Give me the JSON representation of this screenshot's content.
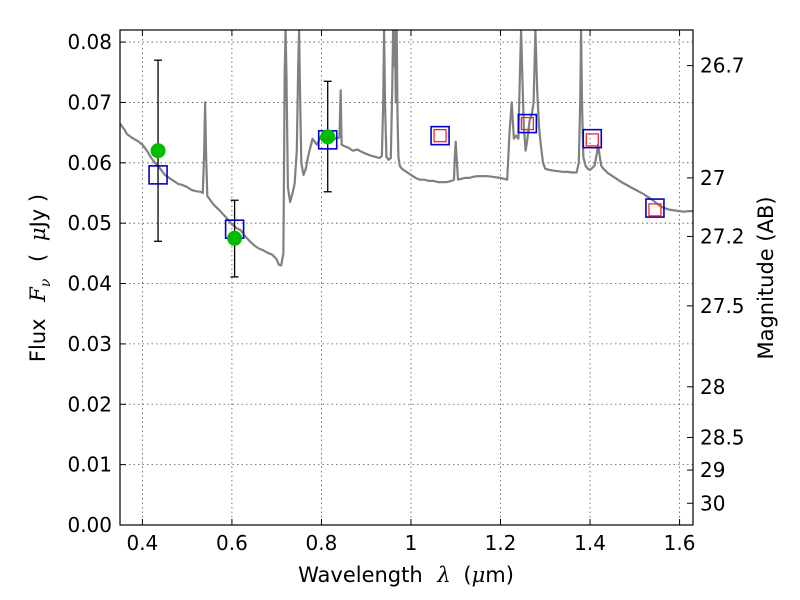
{
  "chart_data": {
    "type": "scatter",
    "xlabel": {
      "prefix": "Wavelength",
      "symbol": "λ",
      "unit_open": "(",
      "unit_mu": "μ",
      "unit_rest": "m)"
    },
    "ylabel": {
      "prefix": "Flux",
      "symbol": "F",
      "subscript": "ν",
      "unit_open": "(",
      "unit_mu": "μ",
      "unit_rest": "Jy )"
    },
    "y2label": "Magnitude (AB)",
    "xlim": [
      0.35,
      1.63
    ],
    "ylim": [
      0.0,
      0.082
    ],
    "grid": true,
    "xticks": [
      {
        "value": 0.4,
        "label": "0.4"
      },
      {
        "value": 0.6,
        "label": "0.6"
      },
      {
        "value": 0.8,
        "label": "0.8"
      },
      {
        "value": 1.0,
        "label": "1"
      },
      {
        "value": 1.2,
        "label": "1.2"
      },
      {
        "value": 1.4,
        "label": "1.4"
      },
      {
        "value": 1.6,
        "label": "1.6"
      }
    ],
    "yticks": [
      {
        "value": 0.0,
        "label": "0.00"
      },
      {
        "value": 0.01,
        "label": "0.01"
      },
      {
        "value": 0.02,
        "label": "0.02"
      },
      {
        "value": 0.03,
        "label": "0.03"
      },
      {
        "value": 0.04,
        "label": "0.04"
      },
      {
        "value": 0.05,
        "label": "0.05"
      },
      {
        "value": 0.06,
        "label": "0.06"
      },
      {
        "value": 0.07,
        "label": "0.07"
      },
      {
        "value": 0.08,
        "label": "0.08"
      }
    ],
    "y2ticks": [
      {
        "flux": 0.0761,
        "label": "26.7"
      },
      {
        "flux": 0.0575,
        "label": "27"
      },
      {
        "flux": 0.0478,
        "label": "27.2"
      },
      {
        "flux": 0.0363,
        "label": "27.5"
      },
      {
        "flux": 0.0229,
        "label": "28"
      },
      {
        "flux": 0.0145,
        "label": "28.5"
      },
      {
        "flux": 0.0091,
        "label": "29"
      },
      {
        "flux": 0.0036,
        "label": "30"
      }
    ],
    "series": [
      {
        "kind": "spectrum",
        "color": "#808080",
        "points": [
          [
            0.35,
            0.0665
          ],
          [
            0.355,
            0.066
          ],
          [
            0.36,
            0.0655
          ],
          [
            0.365,
            0.0648
          ],
          [
            0.37,
            0.0645
          ],
          [
            0.38,
            0.064
          ],
          [
            0.39,
            0.0636
          ],
          [
            0.4,
            0.063
          ],
          [
            0.41,
            0.062
          ],
          [
            0.42,
            0.0608
          ],
          [
            0.43,
            0.0598
          ],
          [
            0.44,
            0.059
          ],
          [
            0.45,
            0.058
          ],
          [
            0.46,
            0.0575
          ],
          [
            0.47,
            0.057
          ],
          [
            0.48,
            0.0565
          ],
          [
            0.49,
            0.0563
          ],
          [
            0.5,
            0.056
          ],
          [
            0.51,
            0.0555
          ],
          [
            0.52,
            0.0553
          ],
          [
            0.53,
            0.0552
          ],
          [
            0.535,
            0.055
          ],
          [
            0.538,
            0.062
          ],
          [
            0.54,
            0.07
          ],
          [
            0.542,
            0.062
          ],
          [
            0.545,
            0.0545
          ],
          [
            0.55,
            0.054
          ],
          [
            0.56,
            0.053
          ],
          [
            0.57,
            0.0523
          ],
          [
            0.58,
            0.0515
          ],
          [
            0.59,
            0.0507
          ],
          [
            0.6,
            0.0498
          ],
          [
            0.61,
            0.0492
          ],
          [
            0.62,
            0.0488
          ],
          [
            0.63,
            0.0478
          ],
          [
            0.64,
            0.047
          ],
          [
            0.65,
            0.0463
          ],
          [
            0.66,
            0.0458
          ],
          [
            0.67,
            0.0455
          ],
          [
            0.68,
            0.0451
          ],
          [
            0.69,
            0.0448
          ],
          [
            0.7,
            0.044
          ],
          [
            0.705,
            0.0431
          ],
          [
            0.71,
            0.043
          ],
          [
            0.715,
            0.045
          ],
          [
            0.718,
            0.075
          ],
          [
            0.72,
            0.082
          ],
          [
            0.722,
            0.074
          ],
          [
            0.725,
            0.056
          ],
          [
            0.73,
            0.0535
          ],
          [
            0.735,
            0.0548
          ],
          [
            0.74,
            0.0565
          ],
          [
            0.745,
            0.062
          ],
          [
            0.748,
            0.076
          ],
          [
            0.75,
            0.082
          ],
          [
            0.752,
            0.072
          ],
          [
            0.755,
            0.06
          ],
          [
            0.76,
            0.058
          ],
          [
            0.765,
            0.059
          ],
          [
            0.77,
            0.061
          ],
          [
            0.775,
            0.0625
          ],
          [
            0.78,
            0.064
          ],
          [
            0.785,
            0.0635
          ],
          [
            0.79,
            0.063
          ],
          [
            0.795,
            0.0638
          ],
          [
            0.8,
            0.0645
          ],
          [
            0.81,
            0.0648
          ],
          [
            0.82,
            0.065
          ],
          [
            0.83,
            0.064
          ],
          [
            0.84,
            0.0642
          ],
          [
            0.843,
            0.072
          ],
          [
            0.845,
            0.063
          ],
          [
            0.85,
            0.0628
          ],
          [
            0.86,
            0.0625
          ],
          [
            0.87,
            0.062
          ],
          [
            0.88,
            0.0622
          ],
          [
            0.89,
            0.0618
          ],
          [
            0.9,
            0.0615
          ],
          [
            0.91,
            0.0612
          ],
          [
            0.92,
            0.061
          ],
          [
            0.93,
            0.0608
          ],
          [
            0.935,
            0.0612
          ],
          [
            0.938,
            0.07
          ],
          [
            0.94,
            0.082
          ],
          [
            0.942,
            0.07
          ],
          [
            0.945,
            0.061
          ],
          [
            0.95,
            0.0605
          ],
          [
            0.955,
            0.0608
          ],
          [
            0.958,
            0.072
          ],
          [
            0.96,
            0.082
          ],
          [
            0.962,
            0.076
          ],
          [
            0.964,
            0.082
          ],
          [
            0.966,
            0.07
          ],
          [
            0.968,
            0.082
          ],
          [
            0.97,
            0.068
          ],
          [
            0.972,
            0.061
          ],
          [
            0.975,
            0.0595
          ],
          [
            0.98,
            0.059
          ],
          [
            0.99,
            0.0585
          ],
          [
            1.0,
            0.058
          ],
          [
            1.01,
            0.0575
          ],
          [
            1.02,
            0.0572
          ],
          [
            1.03,
            0.0572
          ],
          [
            1.04,
            0.057
          ],
          [
            1.05,
            0.057
          ],
          [
            1.06,
            0.0568
          ],
          [
            1.07,
            0.0568
          ],
          [
            1.08,
            0.0568
          ],
          [
            1.09,
            0.057
          ],
          [
            1.096,
            0.0572
          ],
          [
            1.098,
            0.061
          ],
          [
            1.1,
            0.0635
          ],
          [
            1.102,
            0.061
          ],
          [
            1.105,
            0.0572
          ],
          [
            1.11,
            0.0573
          ],
          [
            1.12,
            0.0575
          ],
          [
            1.13,
            0.0575
          ],
          [
            1.14,
            0.0577
          ],
          [
            1.15,
            0.0578
          ],
          [
            1.16,
            0.0578
          ],
          [
            1.17,
            0.0578
          ],
          [
            1.18,
            0.0577
          ],
          [
            1.19,
            0.0576
          ],
          [
            1.2,
            0.0575
          ],
          [
            1.21,
            0.0573
          ],
          [
            1.215,
            0.0572
          ],
          [
            1.22,
            0.065
          ],
          [
            1.225,
            0.07
          ],
          [
            1.23,
            0.064
          ],
          [
            1.235,
            0.0645
          ],
          [
            1.24,
            0.064
          ],
          [
            1.243,
            0.074
          ],
          [
            1.246,
            0.082
          ],
          [
            1.249,
            0.074
          ],
          [
            1.252,
            0.066
          ],
          [
            1.256,
            0.062
          ],
          [
            1.26,
            0.064
          ],
          [
            1.265,
            0.067
          ],
          [
            1.27,
            0.068
          ],
          [
            1.274,
            0.07
          ],
          [
            1.278,
            0.082
          ],
          [
            1.282,
            0.072
          ],
          [
            1.286,
            0.066
          ],
          [
            1.29,
            0.063
          ],
          [
            1.295,
            0.06
          ],
          [
            1.3,
            0.059
          ],
          [
            1.31,
            0.0588
          ],
          [
            1.32,
            0.0587
          ],
          [
            1.33,
            0.0586
          ],
          [
            1.34,
            0.0585
          ],
          [
            1.35,
            0.0585
          ],
          [
            1.36,
            0.0584
          ],
          [
            1.37,
            0.0584
          ],
          [
            1.375,
            0.06
          ],
          [
            1.378,
            0.07
          ],
          [
            1.38,
            0.082
          ],
          [
            1.382,
            0.07
          ],
          [
            1.385,
            0.061
          ],
          [
            1.39,
            0.0595
          ],
          [
            1.395,
            0.059
          ],
          [
            1.4,
            0.0588
          ],
          [
            1.41,
            0.0595
          ],
          [
            1.415,
            0.0615
          ],
          [
            1.418,
            0.063
          ],
          [
            1.421,
            0.0615
          ],
          [
            1.425,
            0.0595
          ],
          [
            1.43,
            0.059
          ],
          [
            1.44,
            0.0583
          ],
          [
            1.45,
            0.0578
          ],
          [
            1.46,
            0.0573
          ],
          [
            1.47,
            0.0568
          ],
          [
            1.48,
            0.0564
          ],
          [
            1.49,
            0.056
          ],
          [
            1.5,
            0.0556
          ],
          [
            1.51,
            0.0552
          ],
          [
            1.52,
            0.0548
          ],
          [
            1.53,
            0.0543
          ],
          [
            1.54,
            0.0538
          ],
          [
            1.55,
            0.0532
          ],
          [
            1.56,
            0.0527
          ],
          [
            1.57,
            0.0524
          ],
          [
            1.58,
            0.0522
          ],
          [
            1.59,
            0.0521
          ],
          [
            1.6,
            0.052
          ],
          [
            1.61,
            0.0519
          ],
          [
            1.62,
            0.052
          ],
          [
            1.63,
            0.052
          ]
        ]
      },
      {
        "kind": "observed",
        "color": "#00bb00",
        "points": [
          {
            "x": 0.435,
            "y": 0.062,
            "err": [
              0.047,
              0.077
            ]
          },
          {
            "x": 0.606,
            "y": 0.0475,
            "err": [
              0.0411,
              0.0538
            ]
          },
          {
            "x": 0.814,
            "y": 0.0643,
            "err": [
              0.0552,
              0.0735
            ]
          }
        ]
      },
      {
        "kind": "model-squares-blue",
        "color": "#0000cc",
        "points": [
          {
            "x": 0.435,
            "y": 0.058
          },
          {
            "x": 0.606,
            "y": 0.049
          },
          {
            "x": 0.814,
            "y": 0.0638
          },
          {
            "x": 1.065,
            "y": 0.0645
          },
          {
            "x": 1.26,
            "y": 0.0665
          },
          {
            "x": 1.405,
            "y": 0.064
          },
          {
            "x": 1.545,
            "y": 0.0525
          }
        ]
      },
      {
        "kind": "model-squares-red",
        "color": "#ff2222",
        "points": [
          {
            "x": 1.065,
            "y": 0.0645
          },
          {
            "x": 1.26,
            "y": 0.0665
          },
          {
            "x": 1.405,
            "y": 0.0638
          },
          {
            "x": 1.545,
            "y": 0.0522
          }
        ]
      }
    ]
  }
}
